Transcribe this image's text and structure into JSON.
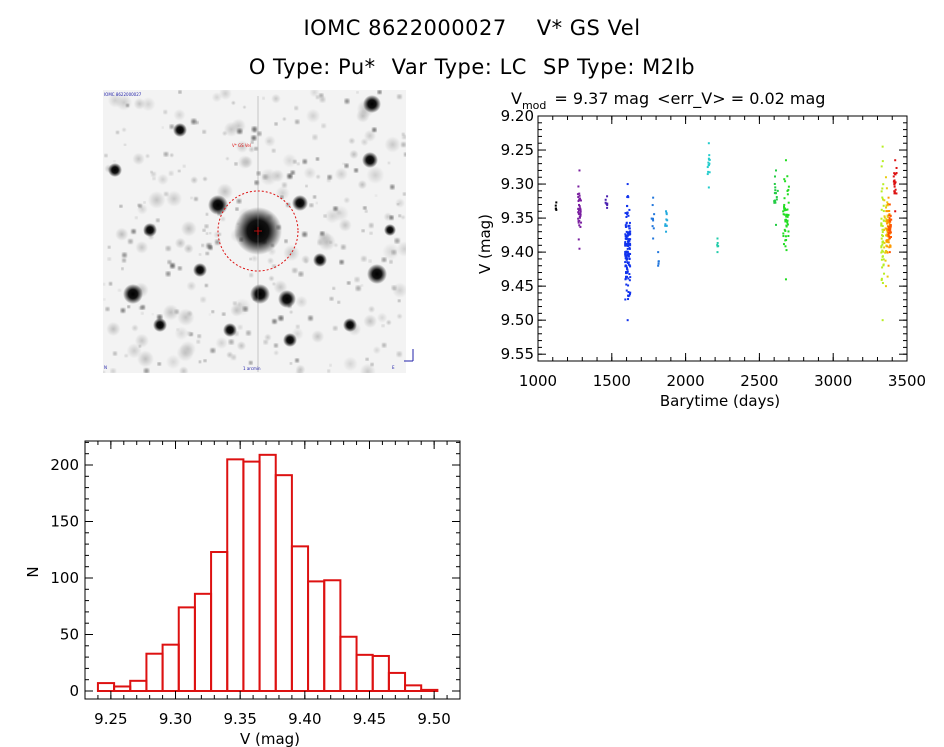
{
  "header": {
    "object_id": "IOMC 8622000027",
    "star_name": "V* GS Vel",
    "o_type_label": "O Type:",
    "o_type": "Pu*",
    "var_type_label": "Var Type:",
    "var_type": "LC",
    "sp_type_label": "SP Type:",
    "sp_type": "M2Ib"
  },
  "finder": {
    "label_top_left": "IOMC 8622000027",
    "label_target": "V* GS Vel",
    "label_bottom_left": "N",
    "label_bottom_center": "1 arcmin",
    "label_bottom_right": "E"
  },
  "lightcurve_header": {
    "v": "V",
    "sub": "mod",
    "eq": "= 9.37 mag",
    "err": "<err_V> = 0.02 mag"
  },
  "colors": {
    "hist": "#dd1111",
    "circle": "#dd1111"
  },
  "chart_data": [
    {
      "type": "scatter",
      "title": "V_mod = 9.37 mag <err_V> = 0.02 mag",
      "xlabel": "Barytime (days)",
      "ylabel": "V (mag)",
      "xlim": [
        1000,
        3500
      ],
      "ylim": [
        9.56,
        9.2
      ],
      "xticks": [
        1000,
        1500,
        2000,
        2500,
        3000,
        3500
      ],
      "yticks": [
        9.2,
        9.25,
        9.3,
        9.35,
        9.4,
        9.45,
        9.5,
        9.55
      ],
      "clusters": [
        {
          "x": [
            1120,
            1128
          ],
          "y": [
            9.327,
            9.338
          ],
          "color": "#000000",
          "n": 3
        },
        {
          "x": [
            1270,
            1292
          ],
          "y": [
            9.28,
            9.395
          ],
          "color": "#7a1fa0",
          "n": 40
        },
        {
          "x": [
            1458,
            1478
          ],
          "y": [
            9.318,
            9.335
          ],
          "color": "#4a1fb0",
          "n": 5
        },
        {
          "x": [
            1590,
            1625
          ],
          "y": [
            9.3,
            9.5
          ],
          "color": "#1133ee",
          "n": 140
        },
        {
          "x": [
            1770,
            1790
          ],
          "y": [
            9.32,
            9.38
          ],
          "color": "#2277dd",
          "n": 8
        },
        {
          "x": [
            1808,
            1820
          ],
          "y": [
            9.4,
            9.42
          ],
          "color": "#2277dd",
          "n": 3
        },
        {
          "x": [
            1855,
            1880
          ],
          "y": [
            9.34,
            9.37
          ],
          "color": "#22aadd",
          "n": 8
        },
        {
          "x": [
            2150,
            2165
          ],
          "y": [
            9.24,
            9.305
          ],
          "color": "#22cccc",
          "n": 12
        },
        {
          "x": [
            2210,
            2222
          ],
          "y": [
            9.38,
            9.4
          ],
          "color": "#22ccaa",
          "n": 4
        },
        {
          "x": [
            2600,
            2625
          ],
          "y": [
            9.28,
            9.36
          ],
          "color": "#22cc44",
          "n": 15
        },
        {
          "x": [
            2660,
            2700
          ],
          "y": [
            9.265,
            9.44
          ],
          "color": "#22dd22",
          "n": 45
        },
        {
          "x": [
            3325,
            3345
          ],
          "y": [
            9.245,
            9.5
          ],
          "color": "#b8ee22",
          "n": 45
        },
        {
          "x": [
            3345,
            3370
          ],
          "y": [
            9.29,
            9.45
          ],
          "color": "#e8cc10",
          "n": 30
        },
        {
          "x": [
            3360,
            3390
          ],
          "y": [
            9.32,
            9.42
          ],
          "color": "#ff9900",
          "n": 40
        },
        {
          "x": [
            3372,
            3395
          ],
          "y": [
            9.33,
            9.4
          ],
          "color": "#ff5500",
          "n": 25
        },
        {
          "x": [
            3410,
            3430
          ],
          "y": [
            9.265,
            9.34
          ],
          "color": "#dd1111",
          "n": 20
        }
      ]
    },
    {
      "type": "bar",
      "title": "",
      "xlabel": "V (mag)",
      "ylabel": "N",
      "xlim": [
        9.23,
        9.52
      ],
      "ylim": [
        0,
        220
      ],
      "xticks": [
        9.25,
        9.3,
        9.35,
        9.4,
        9.45,
        9.5
      ],
      "yticks": [
        0,
        50,
        100,
        150,
        200
      ],
      "bin_width": 0.0125,
      "bin_start": 9.24,
      "values": [
        7,
        4,
        9,
        33,
        41,
        74,
        86,
        123,
        205,
        203,
        209,
        191,
        128,
        97,
        98,
        48,
        32,
        31,
        16,
        5,
        1
      ]
    }
  ]
}
